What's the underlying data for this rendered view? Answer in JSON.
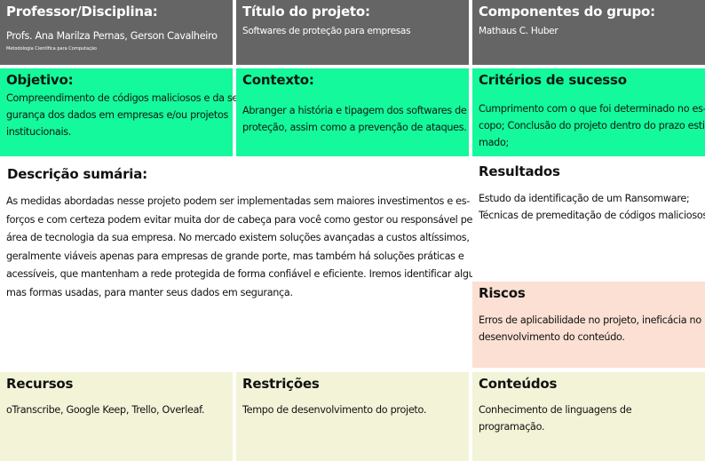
{
  "colors": {
    "header": "#666565",
    "green": "#14f99b",
    "peach": "#fbe0d3",
    "beige": "#f3f3d8"
  },
  "professor": {
    "title": "Professor/Disciplina:",
    "names": "Profs. Ana Marilza Pernas, Gerson Cavalheiro",
    "course": "Metodologia Científica para Computação"
  },
  "titulo": {
    "title": "Título do projeto:",
    "text": "Softwares de proteção para empresas"
  },
  "componentes": {
    "title": "Componentes do grupo:",
    "text": "Mathaus C. Huber"
  },
  "objetivo": {
    "title": "Objetivo:",
    "lines": [
      "Compreendimento de códigos maliciosos e da se-",
      "gurança dos dados em empresas e/ou projetos",
      "institucionais."
    ]
  },
  "contexto": {
    "title": "Contexto:",
    "lines": [
      "Abranger a história e tipagem dos softwares de",
      "proteção, assim como a prevenção de ataques."
    ]
  },
  "criterios": {
    "title": "Critérios de sucesso",
    "lines": [
      "Cumprimento com o que foi determinado no es-",
      "copo; Conclusão do projeto dentro do prazo esti-",
      "mado;"
    ]
  },
  "descricao": {
    "title": "Descrição sumária:",
    "lines": [
      "As medidas abordadas nesse projeto podem ser implementadas sem maiores investimentos e es-",
      "forços e com certeza podem evitar muita dor de cabeça para você como gestor ou responsável pela",
      "área de tecnologia da sua empresa.  No mercado existem soluções avançadas a custos altíssimos,",
      "geralmente viáveis apenas para empresas de grande porte, mas também há soluções práticas e",
      "acessíveis, que mantenham a rede protegida de forma confiável e eficiente.  Iremos identificar algu-",
      "mas formas usadas, para manter seus dados em segurança."
    ]
  },
  "resultados": {
    "title": "Resultados",
    "lines": [
      "Estudo da identificação de um Ransomware;",
      "Técnicas de premeditação de códigos maliciosos."
    ]
  },
  "riscos": {
    "title": "Riscos",
    "lines": [
      "Erros de aplicabilidade no projeto, ineficácia no",
      "desenvolvimento do conteúdo."
    ]
  },
  "recursos": {
    "title": "Recursos",
    "text": "oTranscribe, Google Keep, Trello, Overleaf."
  },
  "restricoes": {
    "title": "Restrições",
    "text": "Tempo de desenvolvimento do projeto."
  },
  "conteudos": {
    "title": "Conteúdos",
    "text": "Conhecimento de linguagens de programação."
  }
}
